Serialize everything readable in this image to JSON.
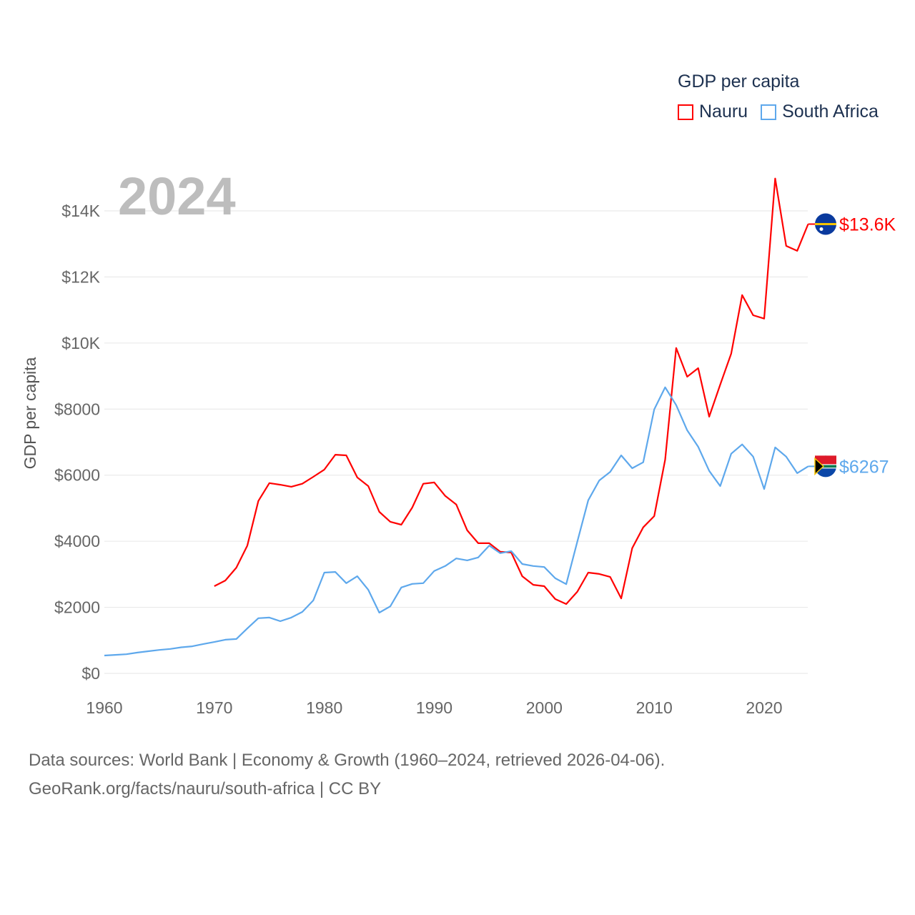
{
  "legend": {
    "title": "GDP per capita",
    "items": [
      {
        "label": "Nauru",
        "color": "#ff0000"
      },
      {
        "label": "South Africa",
        "color": "#5ea8ec"
      }
    ]
  },
  "footer": {
    "line1": "Data sources: World Bank | Economy & Growth (1960–2024, retrieved 2026-04-06).",
    "line2": "GeoRank.org/facts/nauru/south-africa | CC BY"
  },
  "chart_data": {
    "type": "line",
    "year_label": "2024",
    "ylabel": "GDP per capita",
    "xlim": [
      1960,
      2024
    ],
    "ylim": [
      0,
      14000
    ],
    "x_ticks": [
      "1960",
      "1970",
      "1980",
      "1990",
      "2000",
      "2010",
      "2020"
    ],
    "x_tick_values": [
      1960,
      1970,
      1980,
      1990,
      2000,
      2010,
      2020
    ],
    "y_ticks": [
      "$0",
      "$2000",
      "$4000",
      "$6000",
      "$8000",
      "$10K",
      "$12K",
      "$14K"
    ],
    "y_tick_values": [
      0,
      2000,
      4000,
      6000,
      8000,
      10000,
      12000,
      14000
    ],
    "grid": true,
    "legend_position": "top-right",
    "series": [
      {
        "name": "Nauru",
        "color": "#ff0000",
        "end_label": "$13.6K",
        "start_year": 1970,
        "values": [
          2640,
          2810,
          3200,
          3870,
          5220,
          5760,
          5710,
          5650,
          5740,
          5950,
          6170,
          6620,
          6600,
          5930,
          5670,
          4890,
          4590,
          4500,
          5020,
          5740,
          5780,
          5370,
          5110,
          4330,
          3940,
          3940,
          3680,
          3660,
          2940,
          2680,
          2640,
          2250,
          2100,
          2470,
          3050,
          3010,
          2920,
          2270,
          3790,
          4420,
          4760,
          6470,
          9850,
          8980,
          9240,
          7770,
          8740,
          9680,
          11450,
          10840,
          10740,
          14980,
          12940,
          12790,
          13600
        ]
      },
      {
        "name": "South Africa",
        "color": "#5ea8ec",
        "end_label": "$6267",
        "start_year": 1960,
        "values": [
          540,
          560,
          580,
          630,
          670,
          710,
          740,
          790,
          820,
          890,
          950,
          1020,
          1040,
          1360,
          1670,
          1690,
          1580,
          1690,
          1860,
          2210,
          3050,
          3070,
          2730,
          2940,
          2530,
          1840,
          2030,
          2600,
          2710,
          2730,
          3100,
          3250,
          3480,
          3420,
          3510,
          3870,
          3640,
          3700,
          3310,
          3250,
          3220,
          2880,
          2700,
          3980,
          5240,
          5840,
          6100,
          6600,
          6210,
          6390,
          7990,
          8660,
          8120,
          7360,
          6860,
          6130,
          5670,
          6650,
          6930,
          6560,
          5580,
          6840,
          6560,
          6060,
          6267
        ]
      }
    ]
  }
}
